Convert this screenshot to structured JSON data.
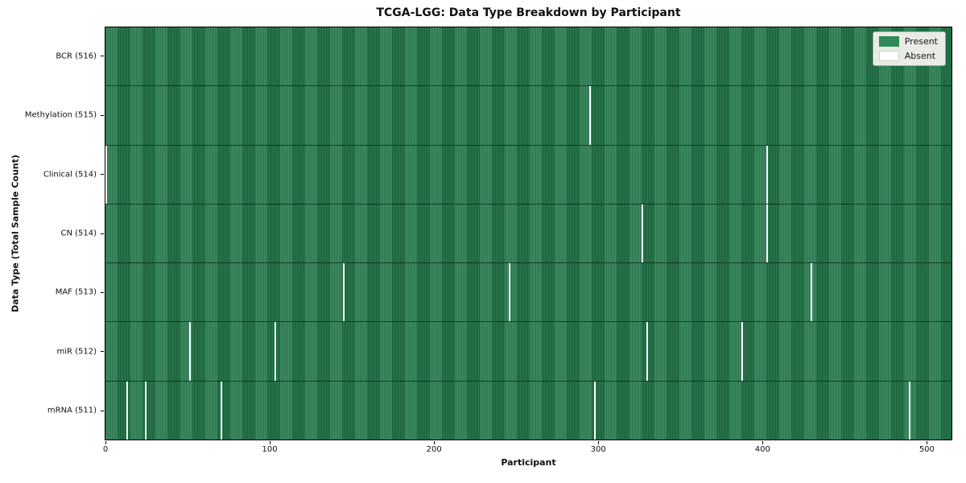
{
  "title": "TCGA-LGG: Data Type Breakdown by Participant",
  "axes": {
    "x_label": "Participant",
    "y_label": "Data Type (Total Sample Count)"
  },
  "legend": {
    "present_label": "Present",
    "absent_label": "Absent"
  },
  "chart_data": {
    "type": "heatmap",
    "title": "TCGA-LGG: Data Type Breakdown by Participant",
    "xlabel": "Participant",
    "ylabel": "Data Type (Total Sample Count)",
    "n_participants": 516,
    "xlim": [
      -0.5,
      515.5
    ],
    "x_ticks": [
      0,
      100,
      200,
      300,
      400,
      500
    ],
    "grid": false,
    "legend_position": "upper right",
    "legend_labels": [
      "Present",
      "Absent"
    ],
    "colors": {
      "present": "#2E8B57",
      "present_edge": "#1f6340",
      "absent": "#ffffff",
      "legend_background": "#e9ece5"
    },
    "rows": [
      {
        "data_type": "BCR",
        "label": "BCR (516)",
        "present_count": 516,
        "absent_count": 0,
        "absent_participants": []
      },
      {
        "data_type": "Methylation",
        "label": "Methylation (515)",
        "present_count": 515,
        "absent_count": 1,
        "absent_participants": [
          295
        ]
      },
      {
        "data_type": "Clinical",
        "label": "Clinical (514)",
        "present_count": 514,
        "absent_count": 2,
        "absent_participants": [
          0,
          403
        ]
      },
      {
        "data_type": "CN",
        "label": "CN (514)",
        "present_count": 514,
        "absent_count": 2,
        "absent_participants": [
          327,
          403
        ]
      },
      {
        "data_type": "MAF",
        "label": "MAF (513)",
        "present_count": 513,
        "absent_count": 3,
        "absent_participants": [
          145,
          246,
          430
        ]
      },
      {
        "data_type": "miR",
        "label": "miR (512)",
        "present_count": 512,
        "absent_count": 4,
        "absent_participants": [
          51,
          103,
          330,
          388
        ]
      },
      {
        "data_type": "mRNA",
        "label": "mRNA (511)",
        "present_count": 511,
        "absent_count": 5,
        "absent_participants": [
          13,
          24,
          70,
          298,
          490
        ]
      }
    ]
  }
}
